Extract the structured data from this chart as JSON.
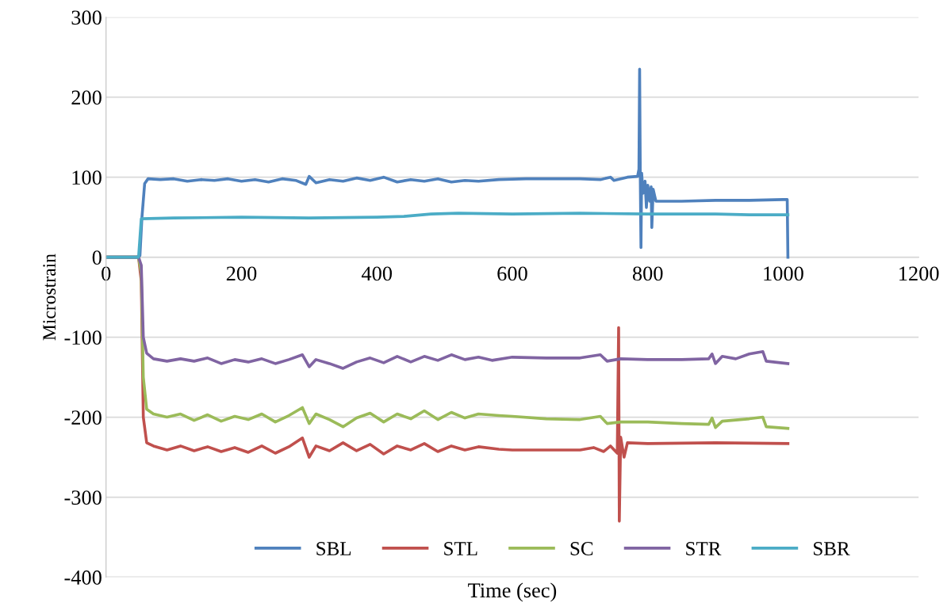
{
  "chart_data": {
    "type": "line",
    "xlabel": "Time (sec)",
    "ylabel": "Microstrain",
    "xlim": [
      0,
      1200
    ],
    "xticks": [
      0,
      200,
      400,
      600,
      800,
      1000,
      1200
    ],
    "ylim": [
      -400,
      300
    ],
    "yticks": [
      -400,
      -300,
      -200,
      -100,
      0,
      100,
      200,
      300
    ],
    "grid": "y",
    "legend": "bottom",
    "marker": "none",
    "line_style": "solid",
    "series": [
      {
        "name": "SBL",
        "color": "#4f81bd",
        "x": [
          0,
          45,
          50,
          53,
          57,
          62,
          80,
          100,
          120,
          140,
          160,
          180,
          200,
          220,
          240,
          260,
          280,
          295,
          300,
          310,
          330,
          350,
          370,
          390,
          410,
          430,
          450,
          470,
          490,
          510,
          530,
          550,
          580,
          620,
          660,
          700,
          730,
          745,
          750,
          770,
          785,
          787,
          788,
          789,
          790,
          791,
          793,
          796,
          798,
          800,
          803,
          805,
          806,
          808,
          812,
          850,
          900,
          950,
          1000,
          1006,
          1007
        ],
        "values": [
          0,
          0,
          2,
          50,
          92,
          98,
          97,
          98,
          95,
          97,
          96,
          98,
          95,
          97,
          94,
          98,
          96,
          91,
          101,
          93,
          97,
          95,
          99,
          96,
          100,
          94,
          97,
          95,
          98,
          94,
          96,
          95,
          97,
          98,
          98,
          98,
          97,
          100,
          96,
          100,
          101,
          110,
          235,
          100,
          12,
          105,
          80,
          95,
          62,
          90,
          70,
          88,
          37,
          85,
          70,
          70,
          71,
          71,
          72,
          72,
          0
        ]
      },
      {
        "name": "STL",
        "color": "#c0504d",
        "x": [
          0,
          48,
          52,
          55,
          60,
          70,
          90,
          110,
          130,
          150,
          170,
          190,
          210,
          230,
          250,
          270,
          290,
          300,
          310,
          330,
          350,
          370,
          390,
          410,
          430,
          450,
          470,
          490,
          510,
          530,
          550,
          580,
          600,
          650,
          700,
          720,
          735,
          745,
          755,
          757,
          758,
          760,
          765,
          770,
          800,
          900,
          1007
        ],
        "values": [
          0,
          0,
          -30,
          -200,
          -232,
          -236,
          -241,
          -236,
          -242,
          -237,
          -243,
          -238,
          -244,
          -236,
          -245,
          -237,
          -226,
          -250,
          -236,
          -242,
          -232,
          -242,
          -234,
          -246,
          -236,
          -241,
          -233,
          -243,
          -236,
          -241,
          -237,
          -240,
          -241,
          -241,
          -241,
          -238,
          -243,
          -236,
          -245,
          -88,
          -330,
          -225,
          -250,
          -232,
          -233,
          -232,
          -233
        ]
      },
      {
        "name": "SC",
        "color": "#9bbb59",
        "x": [
          0,
          48,
          52,
          55,
          60,
          70,
          90,
          110,
          130,
          150,
          170,
          190,
          210,
          230,
          250,
          270,
          290,
          300,
          310,
          330,
          350,
          370,
          390,
          410,
          430,
          450,
          470,
          490,
          510,
          530,
          550,
          580,
          600,
          650,
          700,
          730,
          740,
          760,
          800,
          850,
          890,
          895,
          900,
          910,
          950,
          970,
          975,
          1007
        ],
        "values": [
          0,
          0,
          -20,
          -150,
          -190,
          -196,
          -200,
          -196,
          -204,
          -197,
          -205,
          -199,
          -203,
          -196,
          -206,
          -198,
          -188,
          -208,
          -196,
          -203,
          -212,
          -201,
          -195,
          -206,
          -196,
          -202,
          -192,
          -203,
          -194,
          -201,
          -196,
          -198,
          -199,
          -202,
          -203,
          -199,
          -208,
          -206,
          -206,
          -208,
          -209,
          -201,
          -213,
          -205,
          -202,
          -200,
          -212,
          -214
        ]
      },
      {
        "name": "STR",
        "color": "#8064a2",
        "x": [
          0,
          48,
          52,
          55,
          60,
          70,
          90,
          110,
          130,
          150,
          170,
          190,
          210,
          230,
          250,
          270,
          290,
          300,
          310,
          330,
          350,
          370,
          390,
          410,
          430,
          450,
          470,
          490,
          510,
          530,
          550,
          570,
          600,
          650,
          700,
          730,
          740,
          760,
          800,
          850,
          890,
          895,
          900,
          910,
          930,
          950,
          970,
          975,
          1007
        ],
        "values": [
          0,
          0,
          -10,
          -100,
          -120,
          -127,
          -130,
          -127,
          -130,
          -126,
          -133,
          -128,
          -131,
          -127,
          -133,
          -128,
          -122,
          -137,
          -128,
          -133,
          -139,
          -131,
          -126,
          -132,
          -124,
          -131,
          -124,
          -129,
          -122,
          -128,
          -125,
          -129,
          -125,
          -126,
          -126,
          -122,
          -130,
          -127,
          -128,
          -128,
          -127,
          -121,
          -133,
          -124,
          -127,
          -121,
          -118,
          -130,
          -133
        ]
      },
      {
        "name": "SBR",
        "color": "#4bacc6",
        "x": [
          0,
          48,
          52,
          100,
          200,
          300,
          400,
          440,
          480,
          520,
          600,
          700,
          800,
          900,
          950,
          1007
        ],
        "values": [
          0,
          0,
          48,
          49,
          50,
          49,
          50,
          51,
          54,
          55,
          54,
          55,
          54,
          54,
          53,
          53
        ]
      }
    ]
  }
}
